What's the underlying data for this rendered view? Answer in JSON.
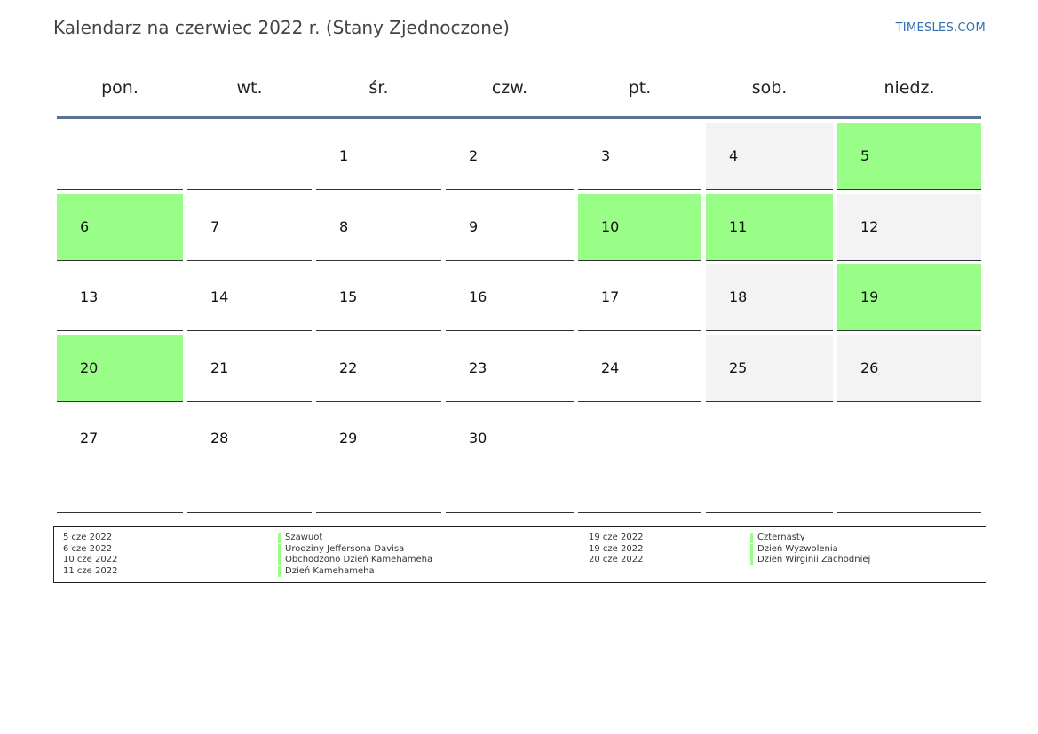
{
  "title": "Kalendarz na czerwiec 2022 r. (Stany Zjednoczone)",
  "brand": "TIMESLES.COM",
  "weekdays": [
    "pon.",
    "wt.",
    "śr.",
    "czw.",
    "pt.",
    "sob.",
    "niedz."
  ],
  "colors": {
    "holiday": "#99fe88",
    "weekend": "#f3f3f3",
    "header_rule": "#5a7296",
    "brand": "#2f6fb0"
  },
  "weeks": [
    [
      {
        "day": ""
      },
      {
        "day": ""
      },
      {
        "day": "1"
      },
      {
        "day": "2"
      },
      {
        "day": "3"
      },
      {
        "day": "4",
        "type": "weekend"
      },
      {
        "day": "5",
        "type": "holiday"
      }
    ],
    [
      {
        "day": "6",
        "type": "holiday"
      },
      {
        "day": "7"
      },
      {
        "day": "8"
      },
      {
        "day": "9"
      },
      {
        "day": "10",
        "type": "holiday"
      },
      {
        "day": "11",
        "type": "holiday"
      },
      {
        "day": "12",
        "type": "weekend"
      }
    ],
    [
      {
        "day": "13"
      },
      {
        "day": "14"
      },
      {
        "day": "15"
      },
      {
        "day": "16"
      },
      {
        "day": "17"
      },
      {
        "day": "18",
        "type": "weekend"
      },
      {
        "day": "19",
        "type": "holiday"
      }
    ],
    [
      {
        "day": "20",
        "type": "holiday"
      },
      {
        "day": "21"
      },
      {
        "day": "22"
      },
      {
        "day": "23"
      },
      {
        "day": "24"
      },
      {
        "day": "25",
        "type": "weekend"
      },
      {
        "day": "26",
        "type": "weekend"
      }
    ],
    [
      {
        "day": "27"
      },
      {
        "day": "28"
      },
      {
        "day": "29"
      },
      {
        "day": "30"
      },
      {
        "day": ""
      },
      {
        "day": ""
      },
      {
        "day": ""
      }
    ]
  ],
  "holidays": [
    {
      "date": "5 cze 2022",
      "name": "Szawuot"
    },
    {
      "date": "6 cze 2022",
      "name": "Urodziny Jeffersona Davisa"
    },
    {
      "date": "10 cze 2022",
      "name": "Obchodzono Dzień Kamehameha"
    },
    {
      "date": "11 cze 2022",
      "name": "Dzień Kamehameha"
    },
    {
      "date": "19 cze 2022",
      "name": "Czternasty"
    },
    {
      "date": "19 cze 2022",
      "name": "Dzień Wyzwolenia"
    },
    {
      "date": "20 cze 2022",
      "name": "Dzień Wirginii Zachodniej"
    }
  ]
}
